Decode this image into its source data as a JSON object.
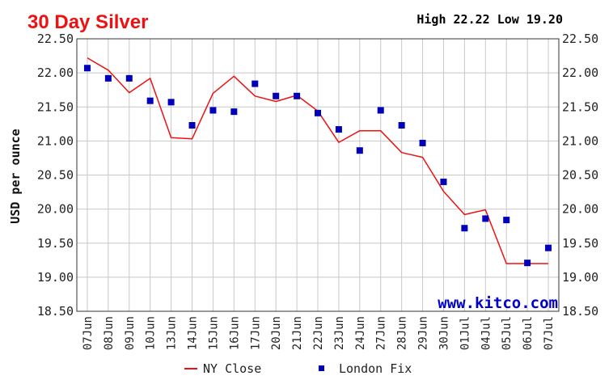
{
  "colors": {
    "title": "#ee1111",
    "ny_close": "#ee1111",
    "london_fix": "#0000bb",
    "grid": "#c8c8c8",
    "frame": "#333333",
    "watermark": "#0000cc"
  },
  "chart_data": {
    "type": "line",
    "title": "30 Day Silver",
    "high_low": "High 22.22 Low 19.20",
    "ylabel": "USD per ounce",
    "watermark": "www.kitco.com",
    "ylim": [
      18.5,
      22.5
    ],
    "yticks": [
      "22.50",
      "22.00",
      "21.50",
      "21.00",
      "20.50",
      "20.00",
      "19.50",
      "19.00",
      "18.50"
    ],
    "grid": true,
    "legend_position": "bottom",
    "categories": [
      "07Jun",
      "08Jun",
      "09Jun",
      "10Jun",
      "13Jun",
      "14Jun",
      "15Jun",
      "16Jun",
      "17Jun",
      "20Jun",
      "21Jun",
      "22Jun",
      "23Jun",
      "24Jun",
      "27Jun",
      "28Jun",
      "29Jun",
      "30Jun",
      "01Jul",
      "04Jul",
      "05Jul",
      "06Jul",
      "07Jul"
    ],
    "series": [
      {
        "name": "NY Close",
        "style": "line",
        "values": [
          22.22,
          22.04,
          21.71,
          21.92,
          21.05,
          21.03,
          21.7,
          21.95,
          21.66,
          21.58,
          21.67,
          21.44,
          20.98,
          21.15,
          21.15,
          20.83,
          20.76,
          20.26,
          19.92,
          19.99,
          19.2,
          19.2,
          19.2
        ]
      },
      {
        "name": "London Fix",
        "style": "marker",
        "values": [
          22.07,
          21.92,
          21.92,
          21.59,
          21.57,
          21.23,
          21.45,
          21.43,
          21.84,
          21.66,
          21.66,
          21.41,
          21.17,
          20.86,
          21.45,
          21.23,
          20.97,
          20.4,
          19.72,
          19.86,
          19.84,
          19.21,
          19.43
        ]
      }
    ]
  }
}
